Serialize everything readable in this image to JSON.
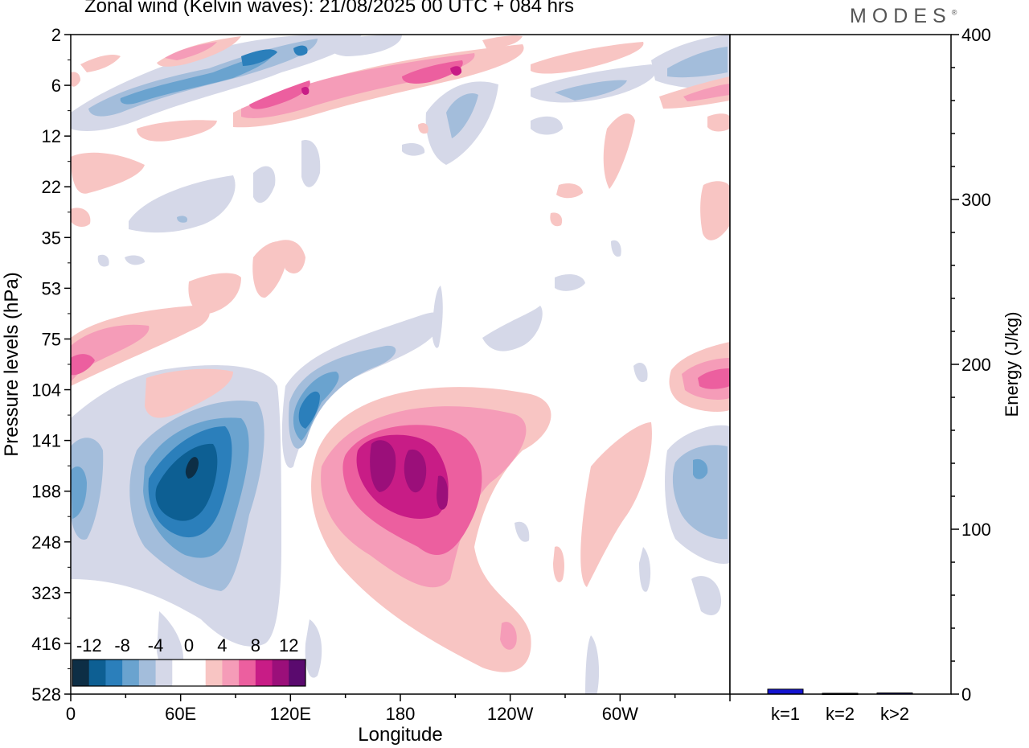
{
  "header": {
    "title": "Zonal wind (Kelvin waves):  21/08/2025  00 UTC  + 084 hrs",
    "logo": "MODES",
    "logo_mark": "®"
  },
  "chart_data": [
    {
      "type": "heatmap",
      "title": "Zonal wind (Kelvin waves):  21/08/2025  00 UTC  + 084 hrs",
      "xlabel": "Longitude",
      "ylabel": "Pressure levels (hPa)",
      "x_ticks": [
        "0",
        "60E",
        "120E",
        "180",
        "120W",
        "60W"
      ],
      "x_tick_degrees": [
        0,
        60,
        120,
        180,
        240,
        300
      ],
      "xlim_degrees": [
        0,
        360
      ],
      "y_ticks": [
        "2",
        "6",
        "12",
        "22",
        "35",
        "53",
        "75",
        "104",
        "141",
        "188",
        "248",
        "323",
        "416",
        "528"
      ],
      "colorbar": {
        "labels": [
          "-12",
          "-8",
          "-4",
          "0",
          "4",
          "8",
          "12"
        ],
        "levels": [
          -14,
          -12,
          -10,
          -8,
          -6,
          -4,
          -2,
          0,
          2,
          4,
          6,
          8,
          10,
          12,
          14
        ],
        "colors": [
          "#0d2e45",
          "#0d5f93",
          "#2b7fbb",
          "#6aa3cf",
          "#a3bddb",
          "#d5d8e8",
          "#ffffff",
          "#ffffff",
          "#f8c5c3",
          "#f59cb8",
          "#ec5f9f",
          "#c81c86",
          "#9b0f7a",
          "#5a0a6e"
        ]
      },
      "features": [
        {
          "name": "upper-positive-band",
          "sign": "positive",
          "peak": 12,
          "lon": [
            45,
            355
          ],
          "lev": [
            3,
            12
          ]
        },
        {
          "name": "upper-negative-band",
          "sign": "negative",
          "peak": -10,
          "lon": [
            0,
            180
          ],
          "lev": [
            2,
            12
          ]
        },
        {
          "name": "western-negative-core",
          "sign": "negative",
          "peak": -14,
          "lon": [
            30,
            110
          ],
          "lev": [
            100,
            300
          ]
        },
        {
          "name": "dateline-positive-core",
          "sign": "positive",
          "peak": 12,
          "lon": [
            130,
            270
          ],
          "lev": [
            110,
            420
          ]
        },
        {
          "name": "dateline-negative-arm",
          "sign": "negative",
          "peak": -8,
          "lon": [
            115,
            200
          ],
          "lev": [
            80,
            200
          ]
        },
        {
          "name": "eastern-negative-core",
          "sign": "negative",
          "peak": -8,
          "lon": [
            320,
            360
          ],
          "lev": [
            120,
            330
          ]
        },
        {
          "name": "eastern-positive-patch",
          "sign": "positive",
          "peak": 10,
          "lon": [
            330,
            360
          ],
          "lev": [
            70,
            120
          ]
        },
        {
          "name": "western-positive-patch",
          "sign": "positive",
          "peak": 10,
          "lon": [
            0,
            45
          ],
          "lev": [
            60,
            110
          ]
        }
      ]
    },
    {
      "type": "bar",
      "categories": [
        "k=1",
        "k=2",
        "k>2"
      ],
      "values": [
        3,
        0.5,
        0.7
      ],
      "ylabel": "Energy (J/kg)",
      "ylim": [
        0,
        400
      ],
      "y_ticks": [
        0,
        100,
        200,
        300,
        400
      ],
      "bar_colors": [
        "#1414d0",
        "#1414d0",
        "#1414d0"
      ]
    }
  ]
}
